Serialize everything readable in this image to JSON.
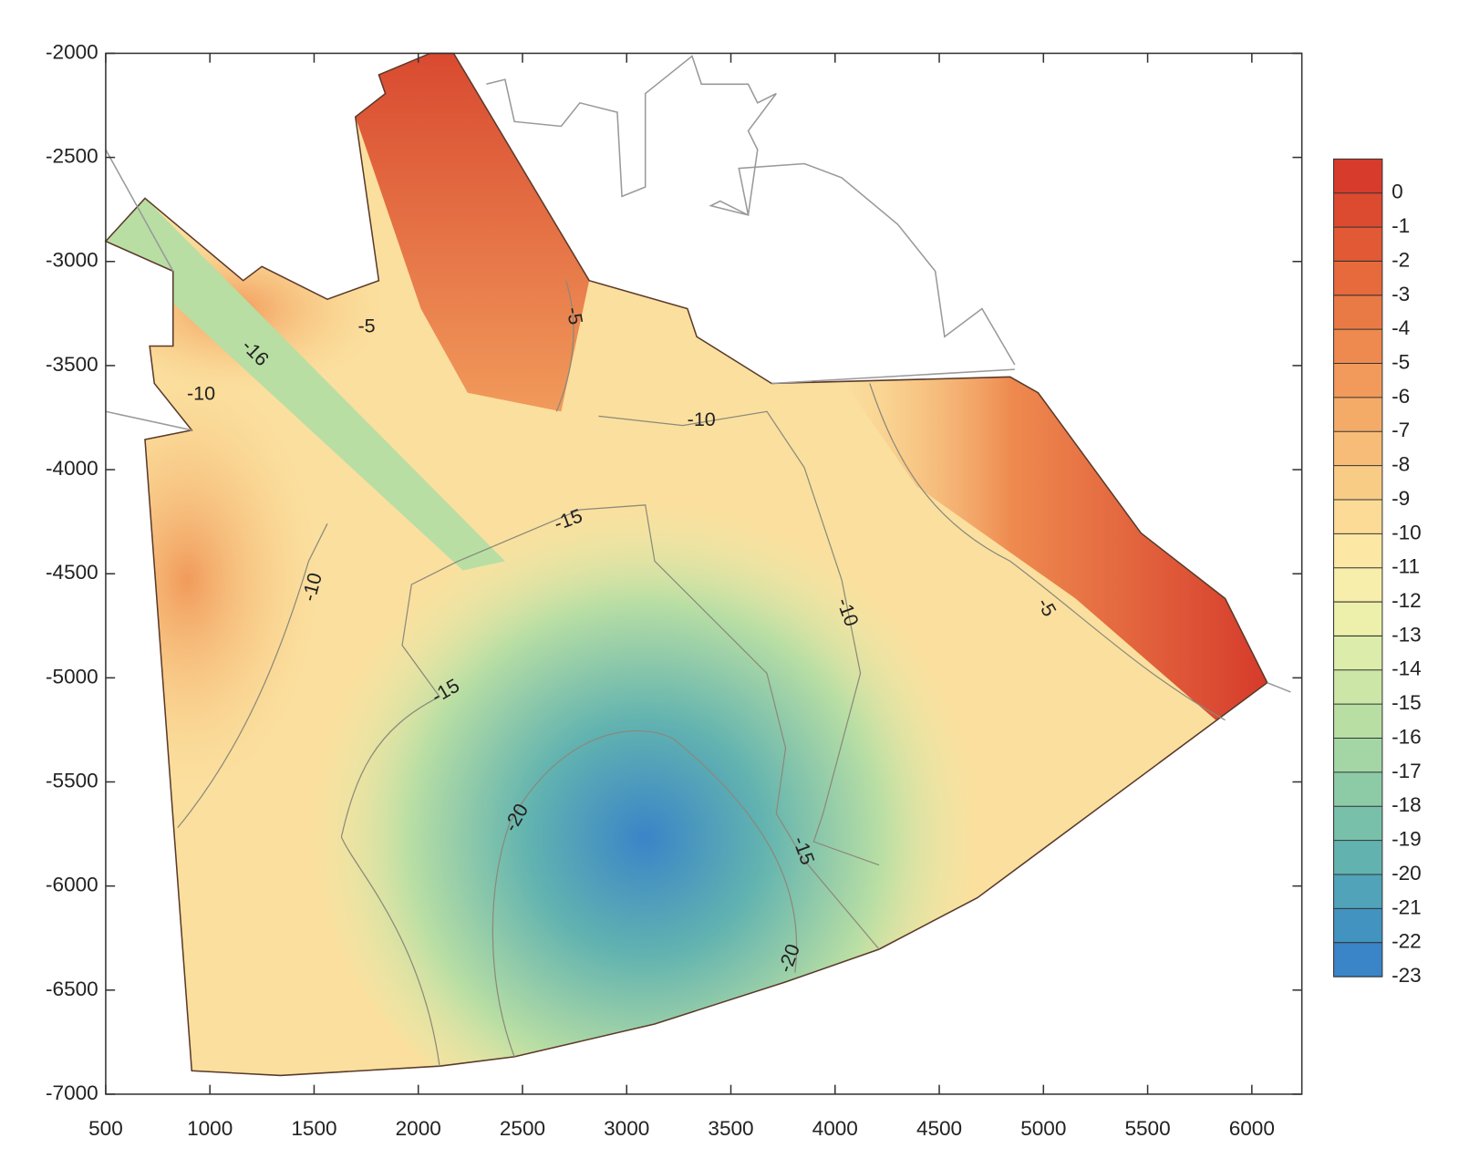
{
  "chart_data": {
    "type": "contour",
    "xlim": [
      500,
      6240
    ],
    "ylim": [
      -7000,
      -2000
    ],
    "xticks": [
      500,
      1000,
      1500,
      2000,
      2500,
      3000,
      3500,
      4000,
      4500,
      5000,
      5500,
      6000
    ],
    "yticks": [
      -2000,
      -2500,
      -3000,
      -3500,
      -4000,
      -4500,
      -5000,
      -5500,
      -6000,
      -6500,
      -7000
    ],
    "contour_labels": [
      -16,
      -5,
      -5,
      -10,
      -10,
      -15,
      -10,
      -10,
      -5,
      -15,
      -20,
      -15,
      -20
    ],
    "colorbar": {
      "levels": [
        0,
        -1,
        -2,
        -3,
        -4,
        -5,
        -6,
        -7,
        -8,
        -9,
        -10,
        -11,
        -12,
        -13,
        -14,
        -15,
        -16,
        -17,
        -18,
        -19,
        -20,
        -21,
        -22,
        -23
      ],
      "colors": [
        "#d63b2b",
        "#dc4a30",
        "#e15a35",
        "#e66a3c",
        "#ea7a45",
        "#ee8a4f",
        "#f19a5b",
        "#f4ab68",
        "#f7bc77",
        "#f9cc86",
        "#fbdb96",
        "#fce7a4",
        "#f7eeab",
        "#ecf0aa",
        "#dcecaa",
        "#cbe6a7",
        "#b8dea4",
        "#a3d6a4",
        "#8dcba6",
        "#78c0aa",
        "#62b3b0",
        "#50a3b8",
        "#4393c1",
        "#3a84c8"
      ]
    }
  }
}
